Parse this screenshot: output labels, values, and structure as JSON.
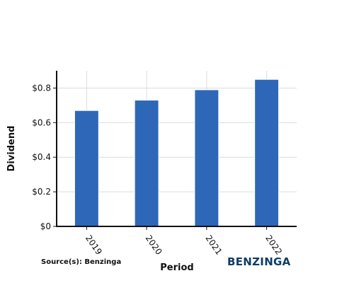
{
  "chart_data": {
    "type": "bar",
    "categories": [
      "2019",
      "2020",
      "2021",
      "2022"
    ],
    "values": [
      0.67,
      0.73,
      0.79,
      0.85
    ],
    "series": [
      {
        "values": [
          0.67,
          0.73,
          0.79,
          0.85
        ]
      }
    ],
    "title": "",
    "xlabel": "Period",
    "ylabel": "Dividend",
    "ylim": [
      0,
      0.9
    ],
    "yticks": [
      0,
      0.2,
      0.4,
      0.6,
      0.8
    ],
    "ytick_labels": [
      "$0",
      "$0.2",
      "$0.4",
      "$0.6",
      "$0.8"
    ],
    "grid": true,
    "legend": "none",
    "bar_color": "#2e67b8"
  },
  "footer": {
    "source": "Source(s): Benzinga",
    "brand": "BENZINGA",
    "brand_color": "#0d3d66"
  }
}
